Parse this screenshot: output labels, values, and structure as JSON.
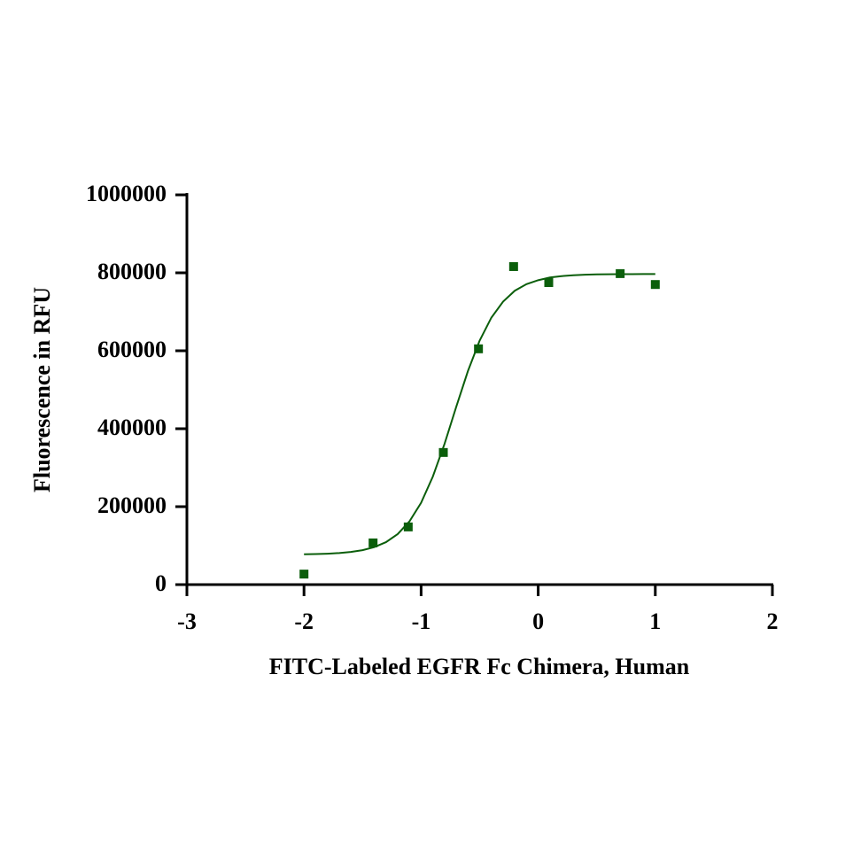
{
  "chart_data": {
    "type": "scatter",
    "x_label": "FITC-Labeled EGFR Fc Chimera, Human",
    "y_label": "Fluorescence in RFU",
    "xlim": [
      -3,
      2
    ],
    "xticks": [
      -3,
      -2,
      -1,
      0,
      1,
      2
    ],
    "ylim": [
      0,
      1000000
    ],
    "yticks": [
      0,
      200000,
      400000,
      600000,
      800000,
      1000000
    ],
    "series": [
      {
        "mode": "markers",
        "color": "#0b5e0b",
        "x": [
          -2.0,
          -1.41,
          -1.11,
          -0.81,
          -0.51,
          -0.21,
          0.09,
          0.7,
          1.0
        ],
        "values": [
          27000,
          107000,
          148000,
          339000,
          605000,
          816000,
          775000,
          798000,
          770000
        ]
      },
      {
        "mode": "line",
        "color": "#0b5e0b",
        "x": [
          -2.0,
          -1.9,
          -1.8,
          -1.7,
          -1.6,
          -1.5,
          -1.4,
          -1.3,
          -1.2,
          -1.1,
          -1.0,
          -0.9,
          -0.8,
          -0.7,
          -0.6,
          -0.5,
          -0.4,
          -0.3,
          -0.2,
          -0.1,
          0.0,
          0.1,
          0.2,
          0.3,
          0.4,
          0.5,
          0.6,
          0.7,
          0.8,
          0.9,
          1.0
        ],
        "values": [
          77800,
          78400,
          79400,
          81000,
          83700,
          88400,
          96200,
          108900,
          129600,
          162000,
          210000,
          277000,
          361000,
          456000,
          548000,
          626000,
          685000,
          726000,
          754000,
          771000,
          781000,
          788000,
          791500,
          793800,
          795100,
          796000,
          796300,
          796500,
          796700,
          796800,
          796900
        ]
      }
    ]
  }
}
